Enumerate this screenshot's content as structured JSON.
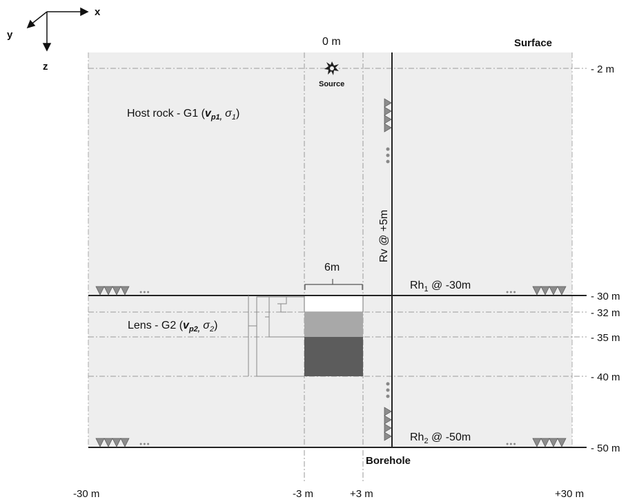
{
  "axes_triad": {
    "x": "x",
    "y": "y",
    "z": "z"
  },
  "labels": {
    "top_center": "0 m",
    "surface": "Surface",
    "source": "Source",
    "host_rock_prefix": "Host rock - G1 (",
    "host_rock_v": "v",
    "host_rock_v_sub": "p1,",
    "host_rock_sigma": "σ",
    "host_rock_sigma_sub": "1",
    "host_rock_suffix": ")",
    "lens_prefix": "Lens - G2 (",
    "lens_v": "v",
    "lens_v_sub": "p2,",
    "lens_sigma": "σ",
    "lens_sigma_sub": "2",
    "lens_suffix": ")",
    "width_label": "6m",
    "rv": "Rv @ +5m",
    "rh1_main": "Rh",
    "rh1_sub": "1",
    "rh1_rest": " @ -30m",
    "rh2_main": "Rh",
    "rh2_sub": "2",
    "rh2_rest": " @ -50m",
    "borehole": "Borehole",
    "dots": "●●●"
  },
  "depth_labels": [
    "- 2 m",
    "- 30 m",
    "- 32 m",
    "- 35 m",
    "- 40 m",
    "- 50 m"
  ],
  "x_labels": [
    "-30 m",
    "-3 m",
    "+3 m",
    "+30 m"
  ],
  "colors": {
    "background": "#eeeeee",
    "lens_top": "#ffffff",
    "lens_mid": "#a8a8a8",
    "lens_bottom": "#5c5c5c",
    "receiver": "#8c8c8c"
  }
}
